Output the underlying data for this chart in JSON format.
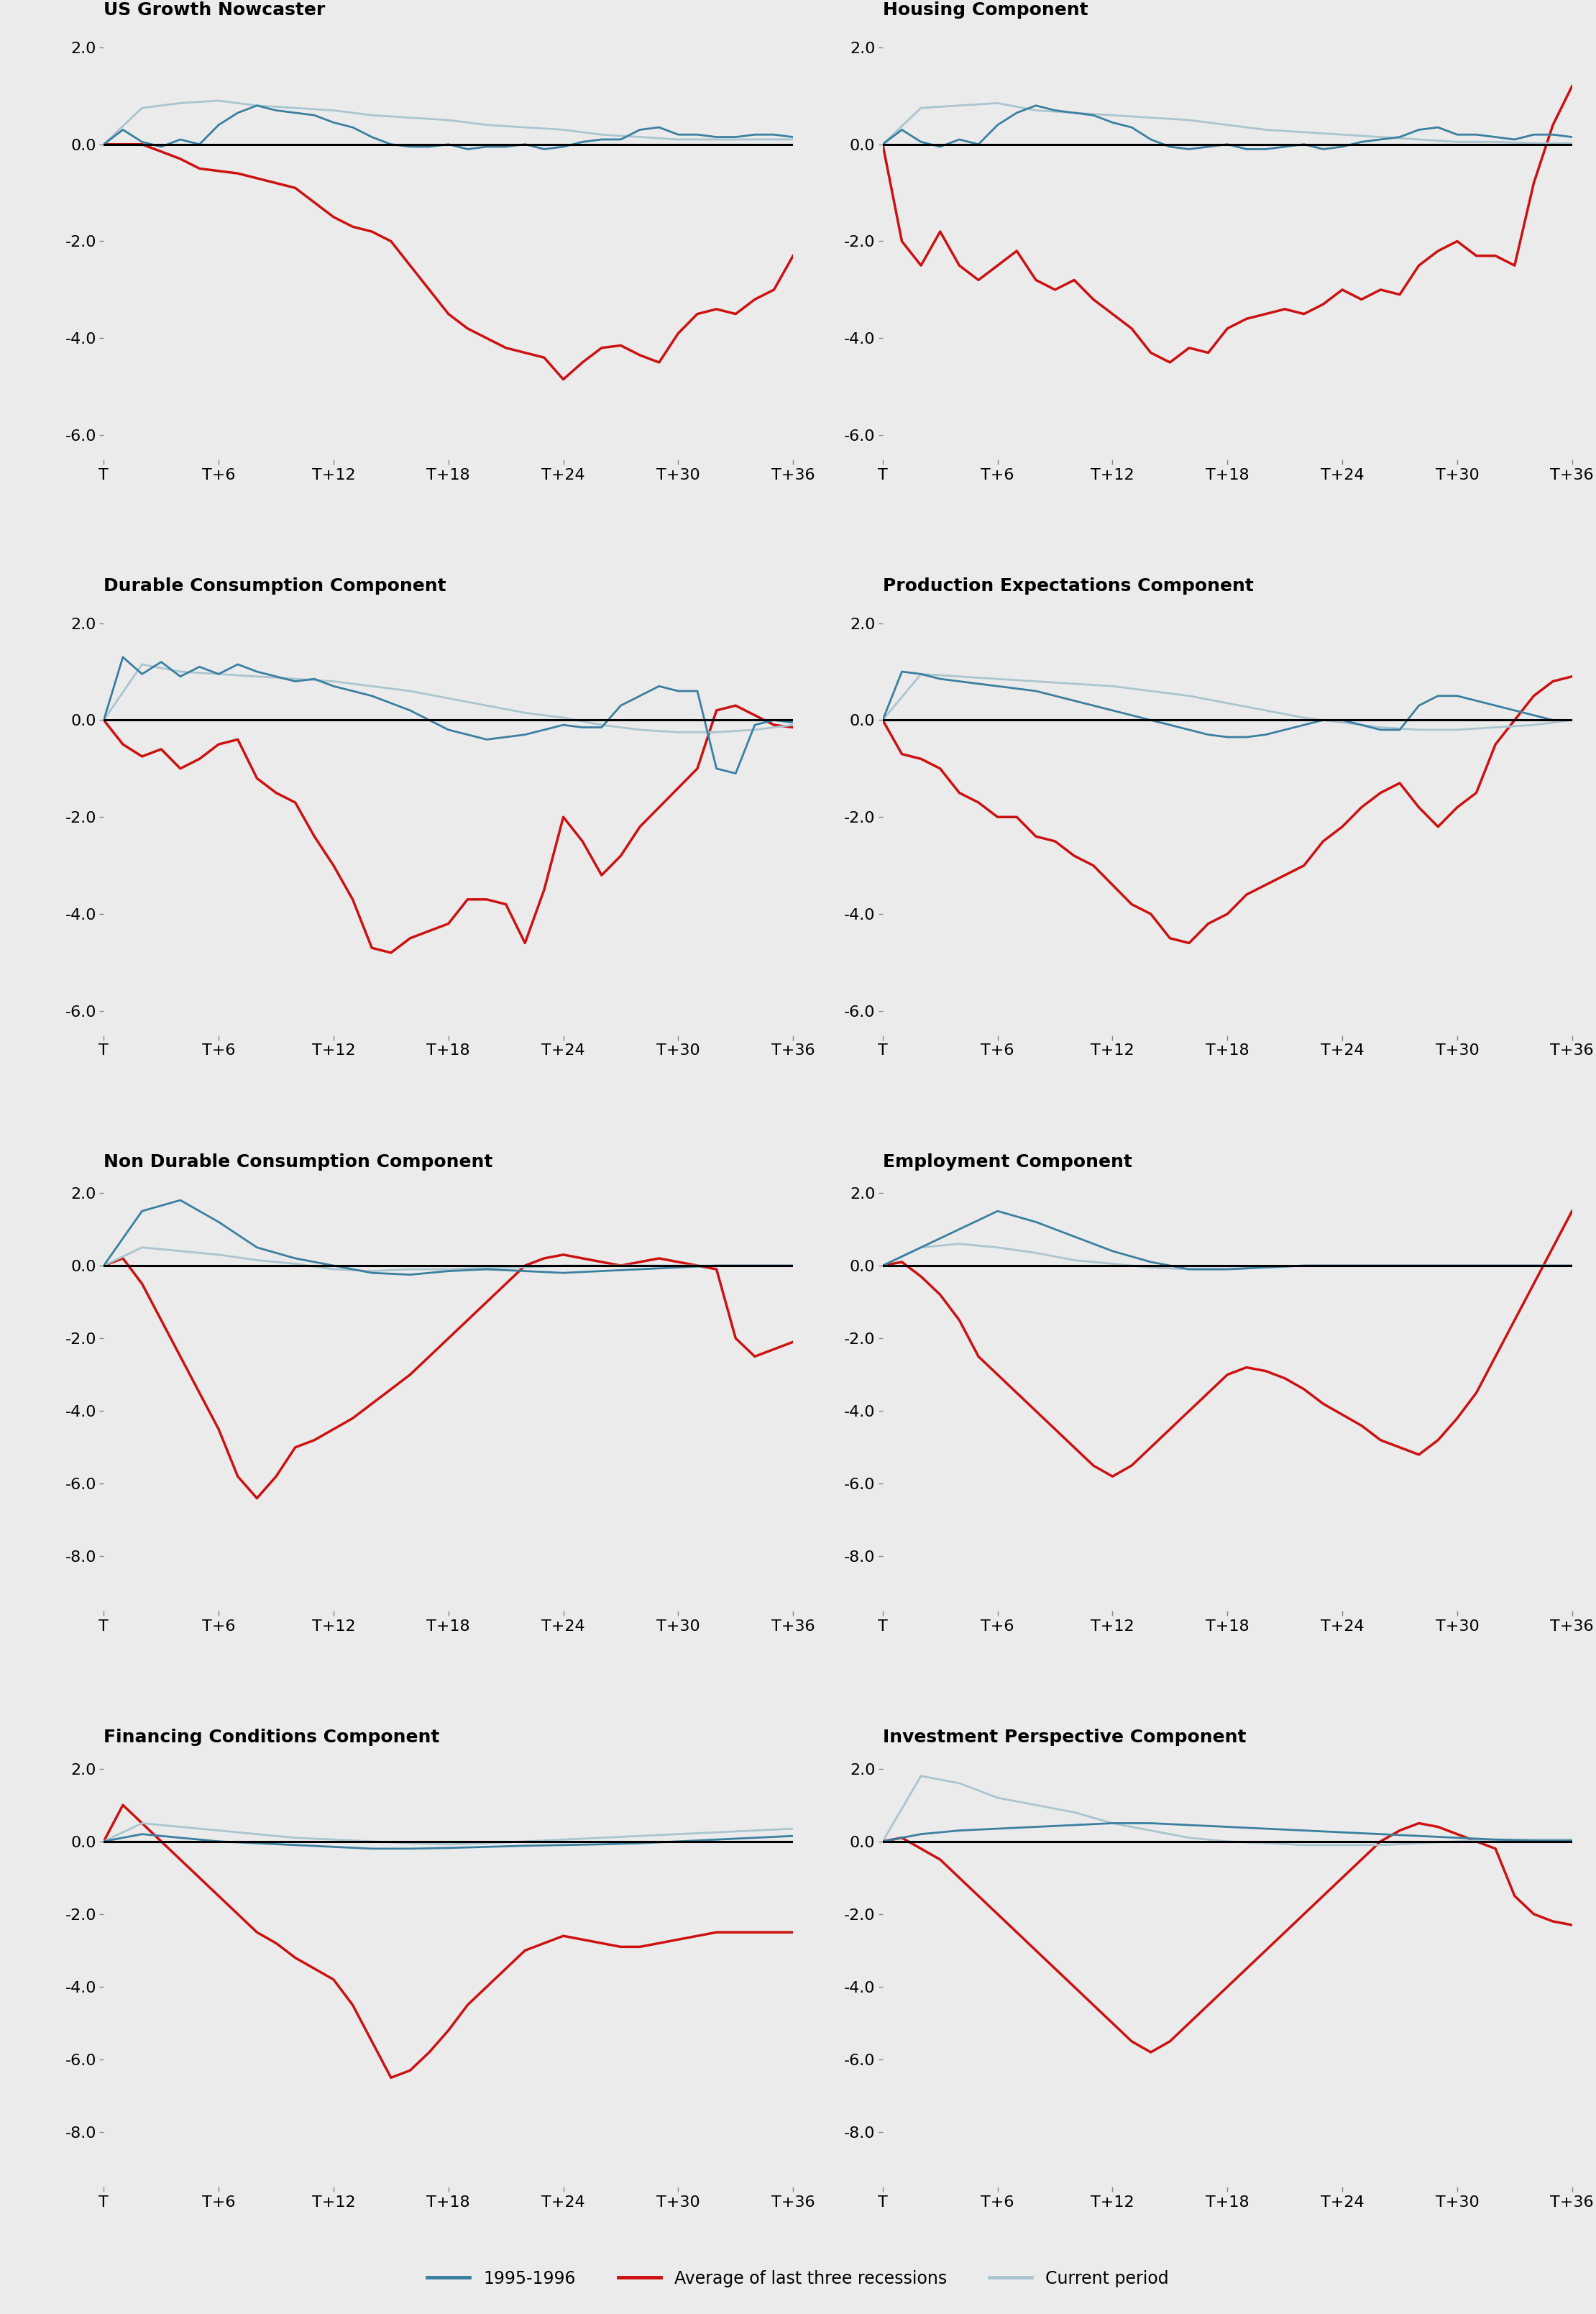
{
  "titles": [
    "US Growth Nowcaster",
    "Housing Component",
    "Durable Consumption Component",
    "Production Expectations Component",
    "Non Durable Consumption Component",
    "Employment Component",
    "Financing Conditions Component",
    "Investment Perspective Component"
  ],
  "x_labels": [
    "T",
    "T+6",
    "T+12",
    "T+18",
    "T+24",
    "T+30",
    "T+36"
  ],
  "x_vals": [
    0,
    6,
    12,
    18,
    24,
    30,
    36
  ],
  "background_color": "#ebebeb",
  "color_1995": "#3a7fa0",
  "color_recession": "#cc1111",
  "color_current": "#aac5d0",
  "line_width": 2.0,
  "series": {
    "US Growth Nowcaster": {
      "y1995": [
        0.0,
        0.3,
        0.05,
        -0.05,
        0.1,
        0.0,
        0.4,
        0.65,
        0.8,
        0.7,
        0.65,
        0.6,
        0.45,
        0.35,
        0.15,
        0.0,
        -0.05,
        -0.05,
        0.0,
        -0.1,
        -0.05,
        -0.05,
        0.0,
        -0.1,
        -0.05,
        0.05,
        0.1,
        0.1,
        0.3,
        0.35,
        0.2,
        0.2,
        0.15,
        0.15,
        0.2,
        0.2,
        0.15
      ],
      "yrecession": [
        0.0,
        0.0,
        0.0,
        -0.15,
        -0.3,
        -0.5,
        -0.55,
        -0.6,
        -0.7,
        -0.8,
        -0.9,
        -1.2,
        -1.5,
        -1.7,
        -1.8,
        -2.0,
        -2.5,
        -3.0,
        -3.5,
        -3.8,
        -4.0,
        -4.2,
        -4.3,
        -4.4,
        -4.85,
        -4.5,
        -4.2,
        -4.15,
        -4.35,
        -4.5,
        -3.9,
        -3.5,
        -3.4,
        -3.5,
        -3.2,
        -3.0,
        -2.3
      ],
      "ycurrent": [
        0.0,
        0.75,
        0.85,
        0.9,
        0.8,
        0.75,
        0.7,
        0.6,
        0.55,
        0.5,
        0.4,
        0.35,
        0.3,
        0.2,
        0.15,
        0.1,
        0.1,
        0.1,
        0.1
      ],
      "ylim": [
        -6.5,
        2.5
      ],
      "yticks": [
        2.0,
        0.0,
        -2.0,
        -4.0,
        -6.0
      ]
    },
    "Housing Component": {
      "y1995": [
        0.0,
        0.3,
        0.05,
        -0.05,
        0.1,
        0.0,
        0.4,
        0.65,
        0.8,
        0.7,
        0.65,
        0.6,
        0.45,
        0.35,
        0.1,
        -0.05,
        -0.1,
        -0.05,
        0.0,
        -0.1,
        -0.1,
        -0.05,
        0.0,
        -0.1,
        -0.05,
        0.05,
        0.1,
        0.15,
        0.3,
        0.35,
        0.2,
        0.2,
        0.15,
        0.1,
        0.2,
        0.2,
        0.15
      ],
      "yrecession": [
        0.0,
        -2.0,
        -2.5,
        -1.8,
        -2.5,
        -2.8,
        -2.5,
        -2.2,
        -2.8,
        -3.0,
        -2.8,
        -3.2,
        -3.5,
        -3.8,
        -4.3,
        -4.5,
        -4.2,
        -4.3,
        -3.8,
        -3.6,
        -3.5,
        -3.4,
        -3.5,
        -3.3,
        -3.0,
        -3.2,
        -3.0,
        -3.1,
        -2.5,
        -2.2,
        -2.0,
        -2.3,
        -2.3,
        -2.5,
        -0.8,
        0.4,
        1.2
      ],
      "ycurrent": [
        0.0,
        0.75,
        0.8,
        0.85,
        0.7,
        0.65,
        0.6,
        0.55,
        0.5,
        0.4,
        0.3,
        0.25,
        0.2,
        0.15,
        0.1,
        0.05,
        0.05,
        0.02,
        0.02
      ],
      "ylim": [
        -6.5,
        2.5
      ],
      "yticks": [
        2.0,
        0.0,
        -2.0,
        -4.0,
        -6.0
      ]
    },
    "Durable Consumption Component": {
      "y1995": [
        0.0,
        1.3,
        0.95,
        1.2,
        0.9,
        1.1,
        0.95,
        1.15,
        1.0,
        0.9,
        0.8,
        0.85,
        0.7,
        0.6,
        0.5,
        0.35,
        0.2,
        0.0,
        -0.2,
        -0.3,
        -0.4,
        -0.35,
        -0.3,
        -0.2,
        -0.1,
        -0.15,
        -0.15,
        0.3,
        0.5,
        0.7,
        0.6,
        0.6,
        -1.0,
        -1.1,
        -0.1,
        0.0,
        -0.05
      ],
      "yrecession": [
        0.0,
        -0.5,
        -0.75,
        -0.6,
        -1.0,
        -0.8,
        -0.5,
        -0.4,
        -1.2,
        -1.5,
        -1.7,
        -2.4,
        -3.0,
        -3.7,
        -4.7,
        -4.8,
        -4.5,
        -4.35,
        -4.2,
        -3.7,
        -3.7,
        -3.8,
        -4.6,
        -3.5,
        -2.0,
        -2.5,
        -3.2,
        -2.8,
        -2.2,
        -1.8,
        -1.4,
        -1.0,
        0.2,
        0.3,
        0.1,
        -0.1,
        -0.15
      ],
      "ycurrent": [
        0.0,
        1.15,
        1.0,
        0.95,
        0.9,
        0.85,
        0.8,
        0.7,
        0.6,
        0.45,
        0.3,
        0.15,
        0.05,
        -0.1,
        -0.2,
        -0.25,
        -0.25,
        -0.2,
        -0.1
      ],
      "ylim": [
        -6.5,
        2.5
      ],
      "yticks": [
        2.0,
        0.0,
        -2.0,
        -4.0,
        -6.0
      ]
    },
    "Production Expectations Component": {
      "y1995": [
        0.0,
        1.0,
        0.95,
        0.85,
        0.8,
        0.75,
        0.7,
        0.65,
        0.6,
        0.5,
        0.4,
        0.3,
        0.2,
        0.1,
        0.0,
        -0.1,
        -0.2,
        -0.3,
        -0.35,
        -0.35,
        -0.3,
        -0.2,
        -0.1,
        0.0,
        0.0,
        -0.1,
        -0.2,
        -0.2,
        0.3,
        0.5,
        0.5,
        0.4,
        0.3,
        0.2,
        0.1,
        0.0,
        0.0
      ],
      "yrecession": [
        0.0,
        -0.7,
        -0.8,
        -1.0,
        -1.5,
        -1.7,
        -2.0,
        -2.0,
        -2.4,
        -2.5,
        -2.8,
        -3.0,
        -3.4,
        -3.8,
        -4.0,
        -4.5,
        -4.6,
        -4.2,
        -4.0,
        -3.6,
        -3.4,
        -3.2,
        -3.0,
        -2.5,
        -2.2,
        -1.8,
        -1.5,
        -1.3,
        -1.8,
        -2.2,
        -1.8,
        -1.5,
        -0.5,
        0.0,
        0.5,
        0.8,
        0.9
      ],
      "ycurrent": [
        0.0,
        0.95,
        0.9,
        0.85,
        0.8,
        0.75,
        0.7,
        0.6,
        0.5,
        0.35,
        0.2,
        0.05,
        -0.05,
        -0.15,
        -0.2,
        -0.2,
        -0.15,
        -0.1,
        0.0
      ],
      "ylim": [
        -6.5,
        2.5
      ],
      "yticks": [
        2.0,
        0.0,
        -2.0,
        -4.0,
        -6.0
      ]
    },
    "Non Durable Consumption Component": {
      "y1995": [
        0.0,
        1.5,
        1.8,
        1.2,
        0.5,
        0.2,
        0.0,
        -0.2,
        -0.25,
        -0.15,
        -0.1,
        -0.15,
        -0.2,
        -0.15,
        -0.1,
        -0.05,
        0.0,
        0.0,
        0.0
      ],
      "yrecession": [
        0.0,
        0.2,
        -0.5,
        -1.5,
        -2.5,
        -3.5,
        -4.5,
        -5.8,
        -6.4,
        -5.8,
        -5.0,
        -4.8,
        -4.5,
        -4.2,
        -3.8,
        -3.4,
        -3.0,
        -2.5,
        -2.0,
        -1.5,
        -1.0,
        -0.5,
        0.0,
        0.2,
        0.3,
        0.2,
        0.1,
        0.0,
        0.1,
        0.2,
        0.1,
        0.0,
        -0.1,
        -2.0,
        -2.5,
        -2.3,
        -2.1
      ],
      "ycurrent": [
        0.0,
        0.5,
        0.4,
        0.3,
        0.15,
        0.05,
        -0.1,
        -0.15,
        -0.1,
        -0.1,
        -0.05,
        -0.05,
        0.0,
        0.0,
        0.0,
        0.0,
        0.0,
        0.0,
        0.0
      ],
      "ylim": [
        -9.5,
        2.5
      ],
      "yticks": [
        2.0,
        0.0,
        -2.0,
        -4.0,
        -6.0,
        -8.0
      ]
    },
    "Employment Component": {
      "y1995": [
        0.0,
        0.5,
        1.0,
        1.5,
        1.2,
        0.8,
        0.4,
        0.1,
        -0.1,
        -0.1,
        -0.05,
        0.0,
        0.0,
        0.0,
        0.0,
        0.0,
        0.0,
        0.0,
        0.0
      ],
      "yrecession": [
        0.0,
        0.1,
        -0.3,
        -0.8,
        -1.5,
        -2.5,
        -3.0,
        -3.5,
        -4.0,
        -4.5,
        -5.0,
        -5.5,
        -5.8,
        -5.5,
        -5.0,
        -4.5,
        -4.0,
        -3.5,
        -3.0,
        -2.8,
        -2.9,
        -3.1,
        -3.4,
        -3.8,
        -4.1,
        -4.4,
        -4.8,
        -5.0,
        -5.2,
        -4.8,
        -4.2,
        -3.5,
        -2.5,
        -1.5,
        -0.5,
        0.5,
        1.5
      ],
      "ycurrent": [
        0.0,
        0.5,
        0.6,
        0.5,
        0.35,
        0.15,
        0.05,
        -0.05,
        -0.1,
        -0.1,
        -0.05,
        0.0,
        0.0,
        0.0,
        0.0,
        0.0,
        0.0,
        0.0,
        0.0
      ],
      "ylim": [
        -9.5,
        2.5
      ],
      "yticks": [
        2.0,
        0.0,
        -2.0,
        -4.0,
        -6.0,
        -8.0
      ]
    },
    "Financing Conditions Component": {
      "y1995": [
        0.0,
        0.2,
        0.1,
        0.0,
        -0.05,
        -0.1,
        -0.15,
        -0.2,
        -0.2,
        -0.18,
        -0.15,
        -0.12,
        -0.1,
        -0.08,
        -0.05,
        0.0,
        0.05,
        0.1,
        0.15
      ],
      "yrecession": [
        0.0,
        1.0,
        0.5,
        0.0,
        -0.5,
        -1.0,
        -1.5,
        -2.0,
        -2.5,
        -2.8,
        -3.2,
        -3.5,
        -3.8,
        -4.5,
        -5.5,
        -6.5,
        -6.3,
        -5.8,
        -5.2,
        -4.5,
        -4.0,
        -3.5,
        -3.0,
        -2.8,
        -2.6,
        -2.7,
        -2.8,
        -2.9,
        -2.9,
        -2.8,
        -2.7,
        -2.6,
        -2.5,
        -2.5,
        -2.5,
        -2.5,
        -2.5
      ],
      "ycurrent": [
        0.0,
        0.5,
        0.4,
        0.3,
        0.2,
        0.1,
        0.05,
        0.0,
        -0.05,
        -0.08,
        -0.05,
        0.0,
        0.05,
        0.1,
        0.15,
        0.2,
        0.25,
        0.3,
        0.35
      ],
      "ylim": [
        -9.5,
        2.5
      ],
      "yticks": [
        2.0,
        0.0,
        -2.0,
        -4.0,
        -6.0,
        -8.0
      ]
    },
    "Investment Perspective Component": {
      "y1995": [
        0.0,
        0.2,
        0.3,
        0.35,
        0.4,
        0.45,
        0.5,
        0.5,
        0.45,
        0.4,
        0.35,
        0.3,
        0.25,
        0.2,
        0.15,
        0.1,
        0.05,
        0.02,
        0.02
      ],
      "yrecession": [
        0.0,
        0.1,
        -0.2,
        -0.5,
        -1.0,
        -1.5,
        -2.0,
        -2.5,
        -3.0,
        -3.5,
        -4.0,
        -4.5,
        -5.0,
        -5.5,
        -5.8,
        -5.5,
        -5.0,
        -4.5,
        -4.0,
        -3.5,
        -3.0,
        -2.5,
        -2.0,
        -1.5,
        -1.0,
        -0.5,
        0.0,
        0.3,
        0.5,
        0.4,
        0.2,
        0.0,
        -0.2,
        -1.5,
        -2.0,
        -2.2,
        -2.3
      ],
      "ycurrent": [
        0.0,
        1.8,
        1.6,
        1.2,
        1.0,
        0.8,
        0.5,
        0.3,
        0.1,
        0.0,
        -0.05,
        -0.1,
        -0.1,
        -0.1,
        -0.05,
        0.0,
        0.05,
        0.05,
        0.05
      ],
      "ylim": [
        -9.5,
        2.5
      ],
      "yticks": [
        2.0,
        0.0,
        -2.0,
        -4.0,
        -6.0,
        -8.0
      ]
    }
  },
  "legend_labels": [
    "1995-1996",
    "Average of last three recessions",
    "Current period"
  ],
  "legend_colors": [
    "#3a7fa0",
    "#cc1111",
    "#aac5d0"
  ]
}
